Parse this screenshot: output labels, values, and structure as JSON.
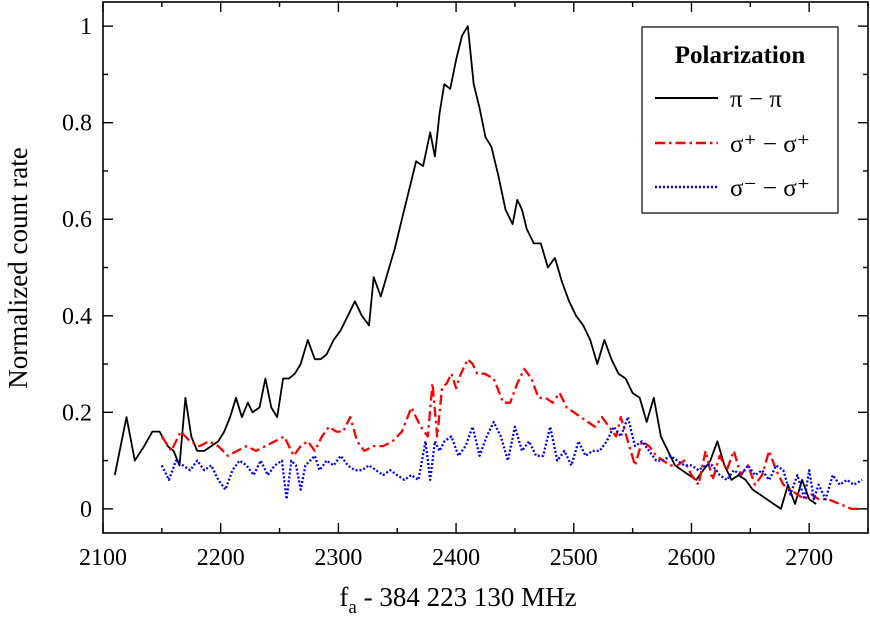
{
  "chart_data": {
    "type": "line",
    "xlabel_main": "f",
    "xlabel_sub": "a",
    "xlabel_rest": " - 384 223 130 MHz",
    "ylabel": "Normalized count rate",
    "xlim": [
      2100,
      2750
    ],
    "ylim": [
      -0.05,
      1.05
    ],
    "x_ticks": [
      2100,
      2200,
      2300,
      2400,
      2500,
      2600,
      2700
    ],
    "y_ticks": [
      0,
      0.2,
      0.4,
      0.6,
      0.8,
      1
    ],
    "y_tick_labels": [
      "0",
      "0.2",
      "0.4",
      "0.6",
      "0.8",
      "1"
    ],
    "legend": {
      "title": "Polarization",
      "placement": "top-right",
      "entries": [
        "π − π",
        "σ⁺ − σ⁺",
        "σ⁻ − σ⁺"
      ]
    },
    "series": [
      {
        "color": "#000000",
        "dash": "solid",
        "x": [
          2110,
          2120,
          2127,
          2135,
          2142,
          2148,
          2155,
          2160,
          2165,
          2170,
          2175,
          2180,
          2186,
          2192,
          2198,
          2203,
          2208,
          2213,
          2218,
          2223,
          2227,
          2233,
          2238,
          2243,
          2248,
          2253,
          2258,
          2263,
          2268,
          2274,
          2280,
          2285,
          2290,
          2296,
          2302,
          2308,
          2314,
          2320,
          2326,
          2330,
          2336,
          2342,
          2348,
          2354,
          2360,
          2366,
          2372,
          2378,
          2382,
          2386,
          2390,
          2395,
          2400,
          2405,
          2410,
          2415,
          2420,
          2425,
          2430,
          2436,
          2442,
          2448,
          2452,
          2456,
          2460,
          2466,
          2472,
          2478,
          2484,
          2490,
          2496,
          2502,
          2508,
          2514,
          2520,
          2526,
          2532,
          2538,
          2544,
          2550,
          2556,
          2562,
          2568,
          2574,
          2580,
          2586,
          2592,
          2598,
          2604,
          2610,
          2616,
          2622,
          2628,
          2634,
          2640,
          2646,
          2652,
          2658,
          2664,
          2670,
          2676,
          2682,
          2688,
          2694,
          2700,
          2706
        ],
        "y": [
          0.07,
          0.19,
          0.1,
          0.13,
          0.16,
          0.16,
          0.13,
          0.12,
          0.09,
          0.23,
          0.15,
          0.12,
          0.12,
          0.13,
          0.14,
          0.16,
          0.19,
          0.23,
          0.19,
          0.22,
          0.2,
          0.21,
          0.27,
          0.21,
          0.19,
          0.27,
          0.27,
          0.28,
          0.3,
          0.35,
          0.31,
          0.31,
          0.32,
          0.35,
          0.37,
          0.4,
          0.43,
          0.4,
          0.38,
          0.48,
          0.44,
          0.49,
          0.54,
          0.6,
          0.66,
          0.72,
          0.71,
          0.78,
          0.73,
          0.82,
          0.88,
          0.87,
          0.93,
          0.98,
          1.0,
          0.88,
          0.83,
          0.77,
          0.75,
          0.69,
          0.62,
          0.59,
          0.64,
          0.62,
          0.58,
          0.55,
          0.55,
          0.5,
          0.52,
          0.47,
          0.43,
          0.4,
          0.38,
          0.35,
          0.3,
          0.35,
          0.31,
          0.28,
          0.27,
          0.24,
          0.23,
          0.18,
          0.23,
          0.15,
          0.12,
          0.09,
          0.08,
          0.07,
          0.06,
          0.08,
          0.1,
          0.14,
          0.09,
          0.06,
          0.07,
          0.06,
          0.04,
          0.03,
          0.02,
          0.01,
          0.0,
          0.05,
          0.01,
          0.06,
          0.02,
          0.01
        ]
      },
      {
        "color": "#ff0000",
        "dash": "dashdot",
        "x": [
          2150,
          2158,
          2166,
          2174,
          2182,
          2190,
          2198,
          2206,
          2214,
          2222,
          2230,
          2238,
          2246,
          2254,
          2262,
          2268,
          2274,
          2280,
          2286,
          2292,
          2298,
          2304,
          2310,
          2316,
          2322,
          2330,
          2338,
          2346,
          2354,
          2362,
          2370,
          2376,
          2380,
          2384,
          2388,
          2392,
          2396,
          2400,
          2404,
          2410,
          2414,
          2418,
          2424,
          2432,
          2440,
          2446,
          2452,
          2458,
          2464,
          2470,
          2476,
          2482,
          2488,
          2494,
          2500,
          2506,
          2512,
          2518,
          2524,
          2530,
          2536,
          2540,
          2546,
          2552,
          2558,
          2564,
          2570,
          2576,
          2582,
          2588,
          2594,
          2600,
          2606,
          2612,
          2618,
          2624,
          2630,
          2636,
          2642,
          2648,
          2654,
          2660,
          2666,
          2672,
          2678,
          2684,
          2690,
          2696,
          2702,
          2708,
          2716,
          2726,
          2736,
          2745
        ],
        "y": [
          0.15,
          0.12,
          0.16,
          0.14,
          0.13,
          0.14,
          0.13,
          0.11,
          0.12,
          0.13,
          0.12,
          0.13,
          0.14,
          0.15,
          0.11,
          0.13,
          0.14,
          0.12,
          0.15,
          0.17,
          0.16,
          0.16,
          0.19,
          0.14,
          0.12,
          0.13,
          0.13,
          0.14,
          0.16,
          0.21,
          0.17,
          0.15,
          0.26,
          0.15,
          0.25,
          0.26,
          0.28,
          0.25,
          0.28,
          0.31,
          0.3,
          0.28,
          0.28,
          0.27,
          0.22,
          0.22,
          0.26,
          0.29,
          0.27,
          0.23,
          0.23,
          0.22,
          0.24,
          0.21,
          0.2,
          0.19,
          0.18,
          0.17,
          0.19,
          0.17,
          0.15,
          0.19,
          0.14,
          0.09,
          0.14,
          0.13,
          0.11,
          0.1,
          0.09,
          0.09,
          0.1,
          0.07,
          0.05,
          0.12,
          0.06,
          0.11,
          0.08,
          0.12,
          0.07,
          0.09,
          0.05,
          0.07,
          0.12,
          0.08,
          0.05,
          0.04,
          0.03,
          0.02,
          0.03,
          0.02,
          0.02,
          0.01,
          0.0,
          0.0
        ]
      },
      {
        "color": "#0000ff",
        "dash": "dotted",
        "x": [
          2150,
          2156,
          2162,
          2168,
          2174,
          2180,
          2186,
          2192,
          2198,
          2204,
          2210,
          2216,
          2222,
          2228,
          2234,
          2240,
          2246,
          2252,
          2256,
          2260,
          2264,
          2268,
          2272,
          2276,
          2280,
          2284,
          2290,
          2296,
          2302,
          2308,
          2314,
          2320,
          2326,
          2332,
          2338,
          2344,
          2350,
          2356,
          2362,
          2368,
          2374,
          2378,
          2382,
          2386,
          2390,
          2396,
          2402,
          2408,
          2414,
          2420,
          2426,
          2432,
          2438,
          2444,
          2450,
          2456,
          2462,
          2468,
          2474,
          2480,
          2486,
          2492,
          2498,
          2504,
          2510,
          2516,
          2522,
          2528,
          2534,
          2540,
          2546,
          2552,
          2558,
          2564,
          2570,
          2576,
          2582,
          2588,
          2594,
          2600,
          2606,
          2612,
          2618,
          2624,
          2630,
          2636,
          2642,
          2648,
          2654,
          2660,
          2666,
          2672,
          2678,
          2684,
          2690,
          2696,
          2700,
          2704,
          2708,
          2714,
          2720,
          2726,
          2732,
          2738,
          2745
        ],
        "y": [
          0.09,
          0.06,
          0.1,
          0.09,
          0.08,
          0.1,
          0.08,
          0.09,
          0.06,
          0.04,
          0.08,
          0.1,
          0.09,
          0.07,
          0.1,
          0.07,
          0.09,
          0.1,
          0.02,
          0.1,
          0.09,
          0.04,
          0.09,
          0.1,
          0.11,
          0.08,
          0.1,
          0.09,
          0.11,
          0.09,
          0.08,
          0.08,
          0.09,
          0.08,
          0.07,
          0.08,
          0.07,
          0.06,
          0.07,
          0.06,
          0.14,
          0.06,
          0.14,
          0.12,
          0.14,
          0.15,
          0.11,
          0.13,
          0.17,
          0.11,
          0.15,
          0.18,
          0.15,
          0.1,
          0.17,
          0.12,
          0.14,
          0.11,
          0.11,
          0.17,
          0.1,
          0.12,
          0.09,
          0.14,
          0.11,
          0.12,
          0.12,
          0.14,
          0.17,
          0.15,
          0.19,
          0.13,
          0.14,
          0.12,
          0.1,
          0.1,
          0.11,
          0.1,
          0.09,
          0.09,
          0.08,
          0.09,
          0.09,
          0.07,
          0.06,
          0.08,
          0.07,
          0.09,
          0.07,
          0.08,
          0.06,
          0.09,
          0.08,
          0.03,
          0.07,
          0.02,
          0.08,
          0.02,
          0.05,
          0.02,
          0.07,
          0.05,
          0.06,
          0.05,
          0.06
        ]
      }
    ]
  }
}
